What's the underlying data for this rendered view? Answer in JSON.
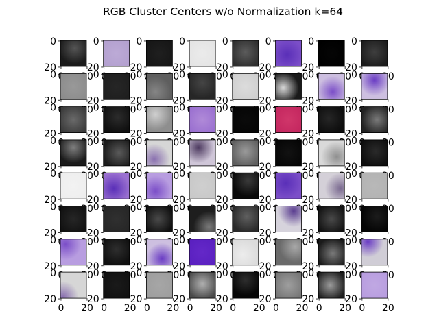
{
  "chart_data": {
    "type": "image_grid",
    "title": "RGB Cluster Centers w/o Normalization k=64",
    "rows": 8,
    "cols": 8,
    "x_ticks": [
      "0",
      "20"
    ],
    "y_ticks": [
      "0",
      "20"
    ],
    "image_size": [
      20,
      20
    ],
    "tiles": [
      {
        "base": "#1a1a1a",
        "light": "#555555",
        "lx": 0.55,
        "ly": 0.3
      },
      {
        "base": "#b3a0cf",
        "light": "#bcaad6",
        "lx": 0.5,
        "ly": 0.5
      },
      {
        "base": "#161616",
        "light": "#1f1f1f",
        "lx": 0.5,
        "ly": 0.5
      },
      {
        "base": "#e4e4e4",
        "light": "#ebebeb",
        "lx": 0.5,
        "ly": 0.5
      },
      {
        "base": "#2e2e2e",
        "light": "#5c5c5c",
        "lx": 0.5,
        "ly": 0.45
      },
      {
        "base": "#7b4ec8",
        "light": "#5a2fb8",
        "lx": 0.45,
        "ly": 0.55
      },
      {
        "base": "#000000",
        "light": "#050505",
        "lx": 0.5,
        "ly": 0.5
      },
      {
        "base": "#1c1c1c",
        "light": "#3e3e3e",
        "lx": 0.5,
        "ly": 0.45
      },
      {
        "base": "#8c8c8c",
        "light": "#999999",
        "lx": 0.5,
        "ly": 0.5
      },
      {
        "base": "#1e1e1e",
        "light": "#262626",
        "lx": 0.5,
        "ly": 0.5
      },
      {
        "base": "#5e5e5e",
        "light": "#858585",
        "lx": 0.35,
        "ly": 0.7
      },
      {
        "base": "#262626",
        "light": "#454545",
        "lx": 0.5,
        "ly": 0.35
      },
      {
        "base": "#cfcfcf",
        "light": "#dcdcdc",
        "lx": 0.5,
        "ly": 0.5
      },
      {
        "base": "#1a1a1a",
        "light": "#d9d9d9",
        "lx": 0.3,
        "ly": 0.55
      },
      {
        "base": "#cdbfe0",
        "light": "#7b4ec8",
        "lx": 0.55,
        "ly": 0.7
      },
      {
        "base": "#cdbfe0",
        "light": "#6a3cc4",
        "lx": 0.5,
        "ly": 0.25
      },
      {
        "base": "#3a3a3a",
        "light": "#6a6a6a",
        "lx": 0.5,
        "ly": 0.5
      },
      {
        "base": "#0f0f0f",
        "light": "#2c2c2c",
        "lx": 0.55,
        "ly": 0.4
      },
      {
        "base": "#8e8e8e",
        "light": "#cfcfcf",
        "lx": 0.35,
        "ly": 0.3
      },
      {
        "base": "#9a70d0",
        "light": "#b08ad8",
        "lx": 0.5,
        "ly": 0.5
      },
      {
        "base": "#050505",
        "light": "#0b0b0b",
        "lx": 0.5,
        "ly": 0.5
      },
      {
        "base": "#c4275f",
        "light": "#d0366a",
        "lx": 0.5,
        "ly": 0.5
      },
      {
        "base": "#0d0d0d",
        "light": "#262626",
        "lx": 0.4,
        "ly": 0.45
      },
      {
        "base": "#222222",
        "light": "#7a7a7a",
        "lx": 0.6,
        "ly": 0.5
      },
      {
        "base": "#1a1a1a",
        "light": "#7f7f7f",
        "lx": 0.5,
        "ly": 0.3
      },
      {
        "base": "#1c1c1c",
        "light": "#5a5a5a",
        "lx": 0.6,
        "ly": 0.5
      },
      {
        "base": "#d6d6d6",
        "light": "#8a70b0",
        "lx": 0.3,
        "ly": 0.75
      },
      {
        "base": "#cfc6d8",
        "light": "#4d3a60",
        "lx": 0.35,
        "ly": 0.3
      },
      {
        "base": "#5e5e5e",
        "light": "#9a9a9a",
        "lx": 0.5,
        "ly": 0.45
      },
      {
        "base": "#060606",
        "light": "#121212",
        "lx": 0.5,
        "ly": 0.5
      },
      {
        "base": "#d9d9d9",
        "light": "#8f8f8f",
        "lx": 0.7,
        "ly": 0.65
      },
      {
        "base": "#0e0e0e",
        "light": "#2a2a2a",
        "lx": 0.55,
        "ly": 0.45
      },
      {
        "base": "#eeeeee",
        "light": "#f2f2f2",
        "lx": 0.5,
        "ly": 0.5
      },
      {
        "base": "#9a70d0",
        "light": "#5a2fb8",
        "lx": 0.4,
        "ly": 0.6
      },
      {
        "base": "#b89de0",
        "light": "#7b4ec8",
        "lx": 0.35,
        "ly": 0.7
      },
      {
        "base": "#c8c8c8",
        "light": "#cfcfcf",
        "lx": 0.5,
        "ly": 0.5
      },
      {
        "base": "#0a0a0a",
        "light": "#3a3a3a",
        "lx": 0.6,
        "ly": 0.3
      },
      {
        "base": "#7b4ec8",
        "light": "#5a2fb8",
        "lx": 0.4,
        "ly": 0.4
      },
      {
        "base": "#d4d0d8",
        "light": "#7a6a90",
        "lx": 0.85,
        "ly": 0.6
      },
      {
        "base": "#b3b3b3",
        "light": "#b8b8b8",
        "lx": 0.5,
        "ly": 0.5
      },
      {
        "base": "#111111",
        "light": "#262626",
        "lx": 0.5,
        "ly": 0.5
      },
      {
        "base": "#262626",
        "light": "#303030",
        "lx": 0.5,
        "ly": 0.5
      },
      {
        "base": "#0f0f0f",
        "light": "#4a4a4a",
        "lx": 0.45,
        "ly": 0.5
      },
      {
        "base": "#1e1e1e",
        "light": "#7a7a7a",
        "lx": 0.75,
        "ly": 0.8
      },
      {
        "base": "#2a2a2a",
        "light": "#606060",
        "lx": 0.55,
        "ly": 0.4
      },
      {
        "base": "#d6d3dc",
        "light": "#5a3d90",
        "lx": 0.7,
        "ly": 0.2
      },
      {
        "base": "#111111",
        "light": "#4a4a4a",
        "lx": 0.5,
        "ly": 0.5
      },
      {
        "base": "#050505",
        "light": "#1c1c1c",
        "lx": 0.6,
        "ly": 0.4
      },
      {
        "base": "#b89de0",
        "light": "#7b4ec8",
        "lx": 0.2,
        "ly": 0.2
      },
      {
        "base": "#0f0f0f",
        "light": "#2e2e2e",
        "lx": 0.5,
        "ly": 0.4
      },
      {
        "base": "#cdbfe0",
        "light": "#6a3cc4",
        "lx": 0.6,
        "ly": 0.75
      },
      {
        "base": "#5a20c0",
        "light": "#6428c8",
        "lx": 0.5,
        "ly": 0.5
      },
      {
        "base": "#dcdcdc",
        "light": "#ececec",
        "lx": 0.4,
        "ly": 0.6
      },
      {
        "base": "#6a6a6a",
        "light": "#a8a8a8",
        "lx": 0.75,
        "ly": 0.3
      },
      {
        "base": "#1a1a1a",
        "light": "#7a7a7a",
        "lx": 0.55,
        "ly": 0.55
      },
      {
        "base": "#d0cdd6",
        "light": "#6a3cc4",
        "lx": 0.25,
        "ly": 0.1
      },
      {
        "base": "#d6d6d6",
        "light": "#8a70b0",
        "lx": 0.1,
        "ly": 0.95
      },
      {
        "base": "#111111",
        "light": "#1a1a1a",
        "lx": 0.5,
        "ly": 0.5
      },
      {
        "base": "#9e9e9e",
        "light": "#a6a6a6",
        "lx": 0.5,
        "ly": 0.5
      },
      {
        "base": "#4a4a4a",
        "light": "#b0b0b0",
        "lx": 0.5,
        "ly": 0.45
      },
      {
        "base": "#060606",
        "light": "#2e2e2e",
        "lx": 0.5,
        "ly": 0.3
      },
      {
        "base": "#777777",
        "light": "#9e9e9e",
        "lx": 0.5,
        "ly": 0.5
      },
      {
        "base": "#1e1e1e",
        "light": "#9a9a9a",
        "lx": 0.45,
        "ly": 0.5
      },
      {
        "base": "#b89de0",
        "light": "#c0a8e2",
        "lx": 0.5,
        "ly": 0.5
      }
    ]
  }
}
